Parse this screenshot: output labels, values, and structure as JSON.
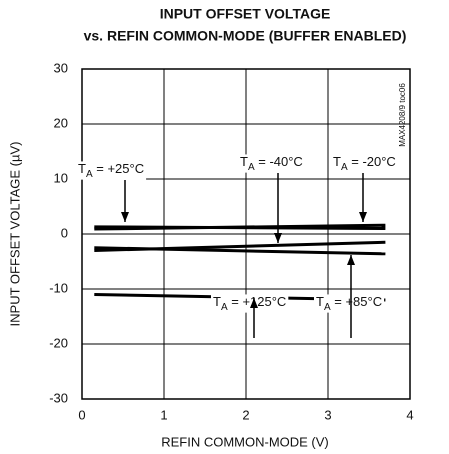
{
  "chart_data": {
    "type": "line",
    "title": "INPUT OFFSET VOLTAGE",
    "subtitle": "vs. REFIN COMMON-MODE (BUFFER ENABLED)",
    "x_label": "REFIN COMMON-MODE (V)",
    "y_label": "INPUT OFFSET VOLTAGE (µV)",
    "annotation": "MAX4208/9 toc06",
    "x": [
      0.15,
      3.7
    ],
    "series": [
      {
        "name": "TA = +25°C",
        "color": "#000000",
        "values": [
          1.3,
          1.0
        ]
      },
      {
        "name": "TA = -40°C",
        "color": "#000000",
        "values": [
          -3.0,
          -1.5
        ]
      },
      {
        "name": "TA = -20°C",
        "color": "#000000",
        "values": [
          0.9,
          1.6
        ]
      },
      {
        "name": "TA = +125°C",
        "color": "#000000",
        "values": [
          -11.0,
          -12.0
        ]
      },
      {
        "name": "TA = +85°C",
        "color": "#000000",
        "values": [
          -2.5,
          -3.6
        ]
      }
    ],
    "xlim": [
      0,
      4
    ],
    "xticks": [
      0,
      1,
      2,
      3,
      4
    ],
    "ylim": [
      -30,
      30
    ],
    "yticks": [
      -30,
      -20,
      -10,
      0,
      10,
      20,
      30
    ],
    "grid": true
  }
}
